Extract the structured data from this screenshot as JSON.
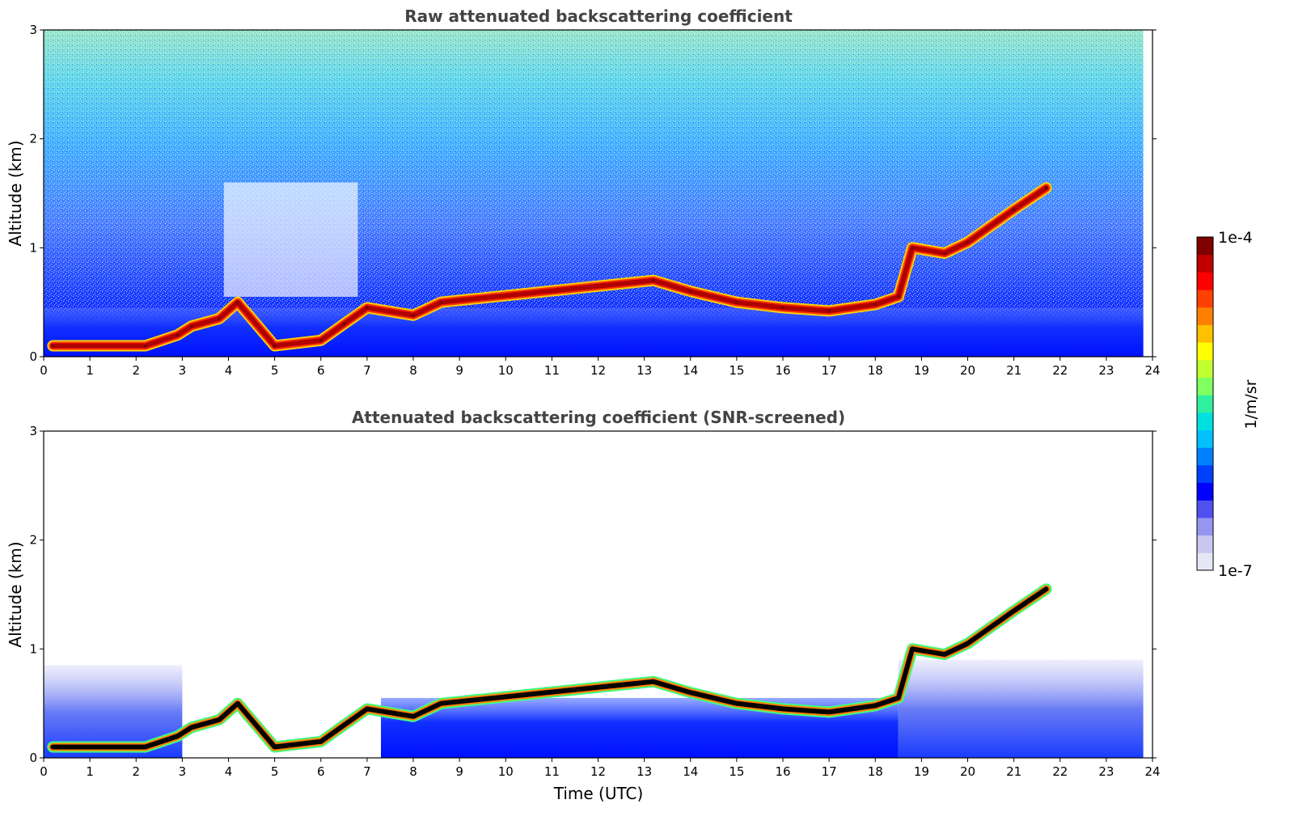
{
  "chart_data": [
    {
      "type": "heatmap",
      "title": "Raw attenuated backscattering coefficient",
      "xlabel": "",
      "ylabel": "Altitude (km)",
      "xlim": [
        0,
        24
      ],
      "ylim": [
        0,
        3
      ],
      "xticks": [
        "0",
        "1",
        "2",
        "3",
        "4",
        "5",
        "6",
        "7",
        "8",
        "9",
        "10",
        "11",
        "12",
        "13",
        "14",
        "15",
        "16",
        "17",
        "18",
        "19",
        "20",
        "21",
        "22",
        "23",
        "24"
      ],
      "yticks": [
        "0",
        "1",
        "2",
        "3"
      ],
      "cloud_base_layer": {
        "time": [
          0.2,
          2.2,
          2.9,
          3.2,
          3.8,
          4.2,
          5.0,
          6.0,
          6.5,
          7.0,
          8.0,
          8.6,
          13.2,
          14.0,
          15.0,
          16.0,
          17.0,
          18.0,
          18.5,
          18.8,
          19.5,
          20.0,
          21.0,
          21.7
        ],
        "altitude_km": [
          0.1,
          0.1,
          0.2,
          0.28,
          0.35,
          0.5,
          0.1,
          0.15,
          0.3,
          0.45,
          0.38,
          0.5,
          0.7,
          0.6,
          0.5,
          0.45,
          0.42,
          0.48,
          0.55,
          1.0,
          0.95,
          1.05,
          1.35,
          1.55
        ]
      },
      "noise_region": "full record 0-23.8 UTC, altitude 0-3 km",
      "colorbar": {
        "label": "1/m/sr",
        "min": "1e-7",
        "max": "1e-4",
        "scale": "log"
      }
    },
    {
      "type": "heatmap",
      "title": "Attenuated backscattering coefficient (SNR-screened)",
      "xlabel": "Time (UTC)",
      "ylabel": "Altitude (km)",
      "xlim": [
        0,
        24
      ],
      "ylim": [
        0,
        3
      ],
      "xticks": [
        "0",
        "1",
        "2",
        "3",
        "4",
        "5",
        "6",
        "7",
        "8",
        "9",
        "10",
        "11",
        "12",
        "13",
        "14",
        "15",
        "16",
        "17",
        "18",
        "19",
        "20",
        "21",
        "22",
        "23",
        "24"
      ],
      "yticks": [
        "0",
        "1",
        "2",
        "3"
      ],
      "cloud_base_layer": {
        "time": [
          0.2,
          2.2,
          2.9,
          3.2,
          3.8,
          4.2,
          5.0,
          6.0,
          6.5,
          7.0,
          8.0,
          8.6,
          13.2,
          14.0,
          15.0,
          16.0,
          17.0,
          18.0,
          18.5,
          18.8,
          19.5,
          20.0,
          21.0,
          21.7
        ],
        "altitude_km": [
          0.1,
          0.1,
          0.2,
          0.28,
          0.35,
          0.5,
          0.1,
          0.15,
          0.3,
          0.45,
          0.38,
          0.5,
          0.7,
          0.6,
          0.5,
          0.45,
          0.42,
          0.48,
          0.55,
          1.0,
          0.95,
          1.05,
          1.35,
          1.55
        ]
      },
      "noise_region": "screened: mostly white above boundary layer",
      "colorbar": {
        "label": "1/m/sr",
        "min": "1e-7",
        "max": "1e-4",
        "scale": "log"
      }
    }
  ],
  "colorbar": {
    "label": "1/m/sr",
    "max_label": "1e-4",
    "min_label": "1e-7",
    "colors": [
      "#e6e6f5",
      "#c8c8f0",
      "#9696f0",
      "#5050f0",
      "#0000ff",
      "#0040ff",
      "#0080ff",
      "#00c0ff",
      "#00e0e0",
      "#30f0a0",
      "#80ff60",
      "#c0ff30",
      "#ffff00",
      "#ffc000",
      "#ff8000",
      "#ff4000",
      "#ff0000",
      "#c00000",
      "#800000"
    ]
  }
}
